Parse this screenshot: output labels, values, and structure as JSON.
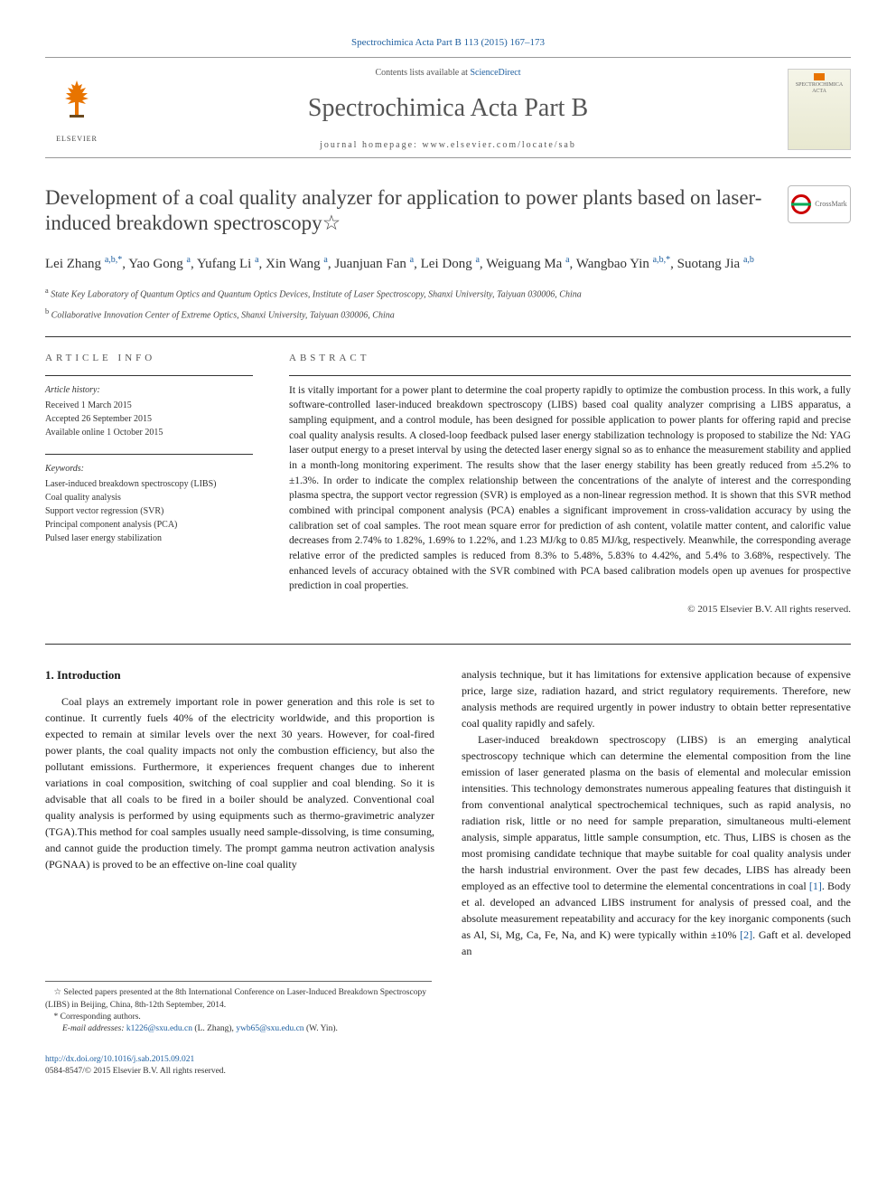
{
  "citation": "Spectrochimica Acta Part B 113 (2015) 167–173",
  "banner": {
    "contents_prefix": "Contents lists available at ",
    "contents_link": "ScienceDirect",
    "journal": "Spectrochimica Acta Part B",
    "homepage_prefix": "journal homepage: ",
    "homepage": "www.elsevier.com/locate/sab",
    "publisher": "ELSEVIER",
    "cover_label": "SPECTROCHIMICA ACTA"
  },
  "crossmark_label": "CrossMark",
  "title": "Development of a coal quality analyzer for application to power plants based on laser-induced breakdown spectroscopy☆",
  "authors_html": "Lei Zhang <sup>a,b,*</sup>, Yao Gong <sup>a</sup>, Yufang Li <sup>a</sup>, Xin Wang <sup>a</sup>, Juanjuan Fan <sup>a</sup>, Lei Dong <sup>a</sup>, Weiguang Ma <sup>a</sup>, Wangbao Yin <sup>a,b,*</sup>, Suotang Jia <sup>a,b</sup>",
  "affiliations": {
    "a": "State Key Laboratory of Quantum Optics and Quantum Optics Devices, Institute of Laser Spectroscopy, Shanxi University, Taiyuan 030006, China",
    "b": "Collaborative Innovation Center of Extreme Optics, Shanxi University, Taiyuan 030006, China"
  },
  "article_info": {
    "label": "ARTICLE INFO",
    "history_hdr": "Article history:",
    "received": "Received 1 March 2015",
    "accepted": "Accepted 26 September 2015",
    "online": "Available online 1 October 2015",
    "keywords_hdr": "Keywords:",
    "keywords": [
      "Laser-induced breakdown spectroscopy (LIBS)",
      "Coal quality analysis",
      "Support vector regression (SVR)",
      "Principal component analysis (PCA)",
      "Pulsed laser energy stabilization"
    ]
  },
  "abstract": {
    "label": "ABSTRACT",
    "text": "It is vitally important for a power plant to determine the coal property rapidly to optimize the combustion process. In this work, a fully software-controlled laser-induced breakdown spectroscopy (LIBS) based coal quality analyzer comprising a LIBS apparatus, a sampling equipment, and a control module, has been designed for possible application to power plants for offering rapid and precise coal quality analysis results. A closed-loop feedback pulsed laser energy stabilization technology is proposed to stabilize the Nd: YAG laser output energy to a preset interval by using the detected laser energy signal so as to enhance the measurement stability and applied in a month-long monitoring experiment. The results show that the laser energy stability has been greatly reduced from ±5.2% to ±1.3%. In order to indicate the complex relationship between the concentrations of the analyte of interest and the corresponding plasma spectra, the support vector regression (SVR) is employed as a non-linear regression method. It is shown that this SVR method combined with principal component analysis (PCA) enables a significant improvement in cross-validation accuracy by using the calibration set of coal samples. The root mean square error for prediction of ash content, volatile matter content, and calorific value decreases from 2.74% to 1.82%, 1.69% to 1.22%, and 1.23 MJ/kg to 0.85 MJ/kg, respectively. Meanwhile, the corresponding average relative error of the predicted samples is reduced from 8.3% to 5.48%, 5.83% to 4.42%, and 5.4% to 3.68%, respectively. The enhanced levels of accuracy obtained with the SVR combined with PCA based calibration models open up avenues for prospective prediction in coal properties.",
    "copyright": "© 2015 Elsevier B.V. All rights reserved."
  },
  "body": {
    "heading": "1. Introduction",
    "col1": "Coal plays an extremely important role in power generation and this role is set to continue. It currently fuels 40% of the electricity worldwide, and this proportion is expected to remain at similar levels over the next 30 years. However, for coal-fired power plants, the coal quality impacts not only the combustion efficiency, but also the pollutant emissions. Furthermore, it experiences frequent changes due to inherent variations in coal composition, switching of coal supplier and coal blending. So it is advisable that all coals to be fired in a boiler should be analyzed. Conventional coal quality analysis is performed by using equipments such as thermo-gravimetric analyzer (TGA).This method for coal samples usually need sample-dissolving, is time consuming, and cannot guide the production timely. The prompt gamma neutron activation analysis (PGNAA) is proved to be an effective on-line coal quality",
    "col2_p1": "analysis technique, but it has limitations for extensive application because of expensive price, large size, radiation hazard, and strict regulatory requirements. Therefore, new analysis methods are required urgently in power industry to obtain better representative coal quality rapidly and safely.",
    "col2_p2a": "Laser-induced breakdown spectroscopy (LIBS) is an emerging analytical spectroscopy technique which can determine the elemental composition from the line emission of laser generated plasma on the basis of elemental and molecular emission intensities. This technology demonstrates numerous appealing features that distinguish it from conventional analytical spectrochemical techniques, such as rapid analysis, no radiation risk, little or no need for sample preparation, simultaneous multi-element analysis, simple apparatus, little sample consumption, etc. Thus, LIBS is chosen as the most promising candidate technique that maybe suitable for coal quality analysis under the harsh industrial environment. Over the past few decades, LIBS has already been employed as an effective tool to determine the elemental concentrations in coal ",
    "ref1": "[1]",
    "col2_p2b": ". Body et al. developed an advanced LIBS instrument for analysis of pressed coal, and the absolute measurement repeatability and accuracy for the key inorganic components (such as Al, Si, Mg, Ca, Fe, Na, and K) were typically within ±10% ",
    "ref2": "[2]",
    "col2_p2c": ". Gaft et al. developed an"
  },
  "footnotes": {
    "star": "☆ Selected papers presented at the 8th International Conference on Laser-Induced Breakdown Spectroscopy (LIBS) in Beijing, China, 8th-12th September, 2014.",
    "corr": "* Corresponding authors.",
    "email_label": "E-mail addresses: ",
    "email1": "k1226@sxu.edu.cn",
    "email1_who": " (L. Zhang), ",
    "email2": "ywb65@sxu.edu.cn",
    "email2_who": " (W. Yin)."
  },
  "footer": {
    "doi": "http://dx.doi.org/10.1016/j.sab.2015.09.021",
    "issn_line": "0584-8547/© 2015 Elsevier B.V. All rights reserved."
  },
  "colors": {
    "link": "#2060a0",
    "elsevier_orange": "#e87400",
    "text": "#1a1a1a",
    "muted": "#555555"
  }
}
